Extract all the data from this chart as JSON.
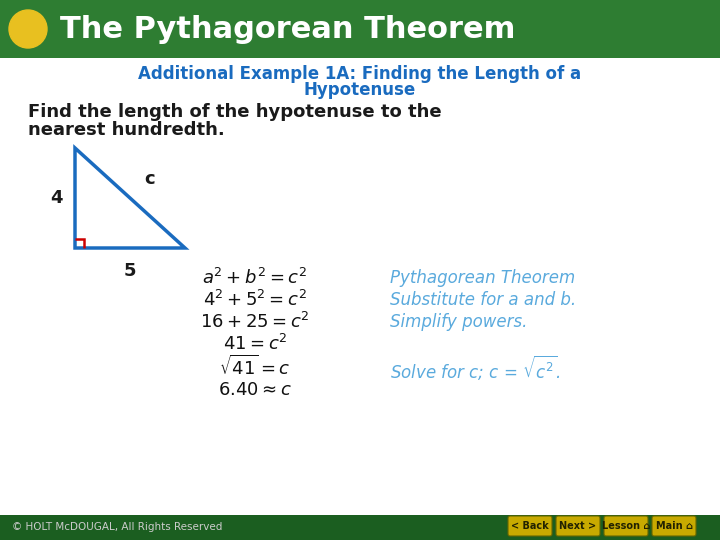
{
  "title": "The Pythagorean Theorem",
  "header_bg": "#2e7d32",
  "header_text_color": "#ffffff",
  "subtitle_line1": "Additional Example 1A: Finding the Length of a",
  "subtitle_line2": "Hypotenuse",
  "subtitle_color": "#1a6bbf",
  "body_line1": "Find the length of the hypotenuse to the",
  "body_line2": "nearest hundredth.",
  "body_text_color": "#1a1a1a",
  "triangle_color": "#1a6bbf",
  "right_angle_color": "#cc0000",
  "reason_color": "#5aaadd",
  "footer_bg": "#1b5e20",
  "footer_text": "© HOLT McDOUGAL, All Rights Reserved",
  "footer_text_color": "#cccccc",
  "button_color": "#c8aa00",
  "button_labels": [
    "< Back",
    "Next >",
    "Lesson",
    "Main"
  ],
  "yellow_circle_color": "#e8c020",
  "bg_color": "#ffffff",
  "eq_color": "#111111"
}
